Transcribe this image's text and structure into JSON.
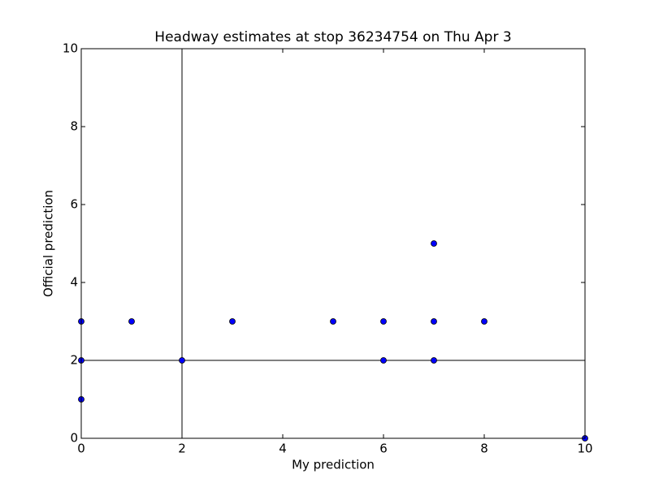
{
  "chart_data": {
    "type": "scatter",
    "title": "Headway estimates at stop 36234754 on Thu Apr 3",
    "x_label": "My prediction",
    "y_label": "Official prediction",
    "series": [
      {
        "color": "#0000ff",
        "x": [
          0,
          0,
          0,
          1,
          2,
          3,
          5,
          6,
          6,
          7,
          7,
          7,
          8,
          10
        ],
        "values": [
          3,
          2,
          1,
          3,
          2,
          3,
          3,
          3,
          2,
          5,
          3,
          2,
          3,
          0
        ]
      }
    ],
    "reference_lines": {
      "x": 2,
      "y": 2
    },
    "xlim": [
      0,
      10
    ],
    "ylim": [
      0,
      10
    ],
    "xticks": [
      0,
      2,
      4,
      6,
      8,
      10
    ],
    "yticks": [
      0,
      2,
      4,
      6,
      8,
      10
    ]
  }
}
